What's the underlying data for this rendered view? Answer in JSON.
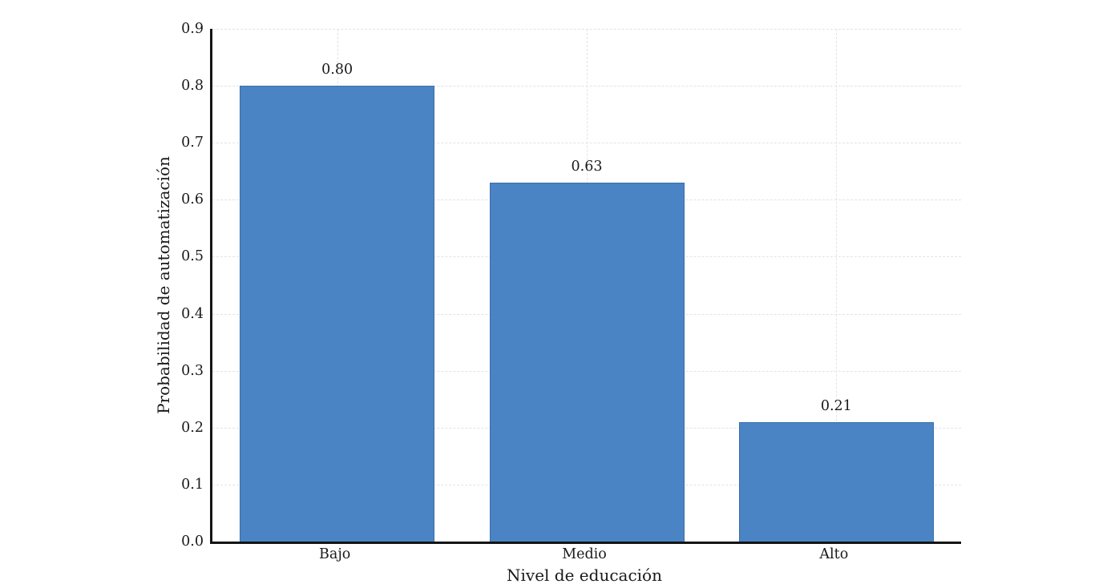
{
  "figure": {
    "background_color": "#ffffff"
  },
  "chart_data": {
    "type": "bar",
    "title": "",
    "categories": [
      "Bajo",
      "Medio",
      "Alto"
    ],
    "values": [
      0.8,
      0.63,
      0.21
    ],
    "bar_labels": [
      "0.80",
      "0.63",
      "0.21"
    ],
    "xlabel": "Nivel de educación",
    "ylabel": "Probabilidad de automatización",
    "ylim": [
      0.0,
      0.9
    ],
    "ytick_labels": [
      "0.0",
      "0.1",
      "0.2",
      "0.3",
      "0.4",
      "0.5",
      "0.6",
      "0.7",
      "0.8",
      "0.9"
    ],
    "grid": "dashed, horizontal and vertical at bar centers",
    "legend": null,
    "colors": {
      "bar_fill": "#4a84c4",
      "bar_edge": "rgba(23,60,105,0.30)",
      "grid": "#e3e3e8",
      "axis": "#141414",
      "text": "#1a1a1a"
    }
  }
}
